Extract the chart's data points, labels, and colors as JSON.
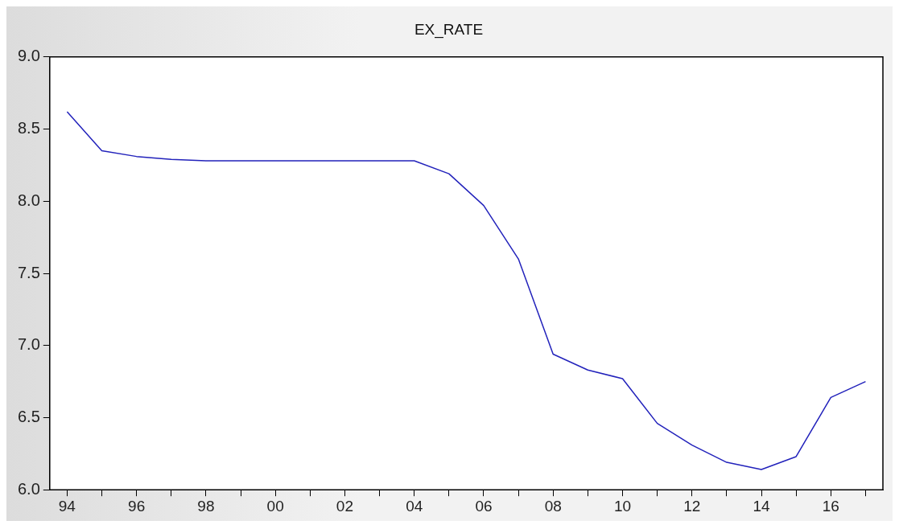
{
  "chart_data": {
    "type": "line",
    "title": "EX_RATE",
    "categories": [
      "94",
      null,
      "96",
      null,
      "98",
      null,
      "00",
      null,
      "02",
      null,
      "04",
      null,
      "06",
      null,
      "08",
      null,
      "10",
      null,
      "12",
      null,
      "14",
      null,
      "16",
      null
    ],
    "series": [
      {
        "color": "#2222bb",
        "values": [
          8.62,
          8.35,
          8.31,
          8.29,
          8.28,
          8.28,
          8.28,
          8.28,
          8.28,
          8.28,
          8.28,
          8.19,
          7.97,
          7.6,
          6.94,
          6.83,
          6.77,
          6.46,
          6.31,
          6.19,
          6.14,
          6.23,
          6.64,
          6.75
        ]
      }
    ],
    "ylim": [
      6.0,
      9.0
    ],
    "yticks": [
      {
        "value": 6.0,
        "label": "6.0"
      },
      6.5,
      {
        "value": 7.0,
        "label": "7.0"
      },
      7.5,
      {
        "value": 8.0,
        "label": "8.0"
      },
      8.5,
      {
        "value": 9.0,
        "label": "9.0"
      }
    ],
    "grid": false,
    "legend": false,
    "marker": "none",
    "line_style": "solid"
  }
}
